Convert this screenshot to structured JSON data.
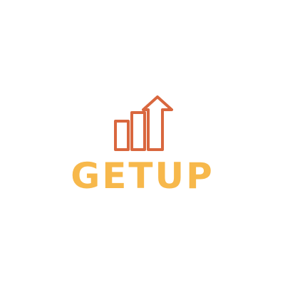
{
  "brand": {
    "wordmark": "GETUP",
    "colors": {
      "icon": "#d9673e",
      "wordmark": "#f7b84b",
      "background": "#ffffff"
    },
    "icon_name": "growth-chart-arrow-icon"
  }
}
